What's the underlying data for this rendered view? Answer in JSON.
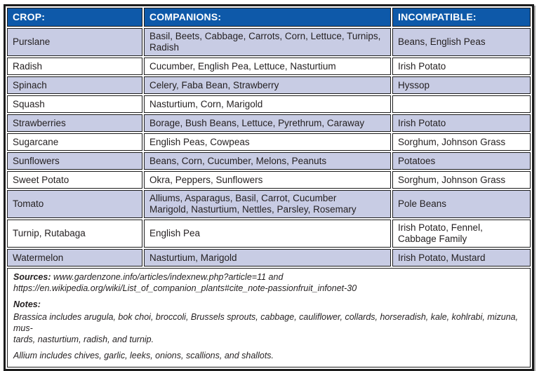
{
  "colors": {
    "header_bg": "#0e59a9",
    "header_text": "#ffffff",
    "row_shaded_bg": "#c8cce4",
    "row_plain_bg": "#ffffff",
    "border": "#1c1c1c",
    "body_text": "#231f20"
  },
  "table": {
    "columns": [
      "CROP:",
      "COMPANIONS:",
      "INCOMPATIBLE:"
    ],
    "rows": [
      {
        "crop": "Purslane",
        "companions": "Basil, Beets, Cabbage, Carrots, Corn, Lettuce, Turnips,\nRadish",
        "incompatible": "Beans, English Peas"
      },
      {
        "crop": "Radish",
        "companions": "Cucumber, English Pea, Lettuce, Nasturtium",
        "incompatible": "Irish Potato"
      },
      {
        "crop": "Spinach",
        "companions": "Celery, Faba Bean, Strawberry",
        "incompatible": "Hyssop"
      },
      {
        "crop": "Squash",
        "companions": "Nasturtium, Corn, Marigold",
        "incompatible": ""
      },
      {
        "crop": "Strawberries",
        "companions": "Borage, Bush Beans, Lettuce, Pyrethrum, Caraway",
        "incompatible": "Irish Potato"
      },
      {
        "crop": "Sugarcane",
        "companions": "English Peas, Cowpeas",
        "incompatible": "Sorghum, Johnson Grass"
      },
      {
        "crop": "Sunflowers",
        "companions": "Beans, Corn, Cucumber, Melons, Peanuts",
        "incompatible": "Potatoes"
      },
      {
        "crop": "Sweet Potato",
        "companions": "Okra, Peppers, Sunflowers",
        "incompatible": "Sorghum, Johnson Grass"
      },
      {
        "crop": "Tomato",
        "companions": "Alliums, Asparagus, Basil, Carrot, Cucumber\nMarigold, Nasturtium, Nettles, Parsley, Rosemary",
        "incompatible": "Pole Beans"
      },
      {
        "crop": "Turnip, Rutabaga",
        "companions": "English Pea",
        "incompatible": "Irish Potato, Fennel,\nCabbage Family"
      },
      {
        "crop": "Watermelon",
        "companions": "Nasturtium, Marigold",
        "incompatible": "Irish Potato, Mustard"
      }
    ]
  },
  "footer": {
    "sources_label": "Sources:",
    "sources_text": "www.gardenzone.info/articles/indexnew.php?article=11 and\nhttps://en.wikipedia.org/wiki/List_of_companion_plants#cite_note-passionfruit_infonet-30",
    "notes_label": "Notes:",
    "note_brassica": "Brassica includes arugula, bok choi, broccoli, Brussels sprouts, cabbage, cauliflower, collards, horseradish, kale, kohlrabi, mizuna, mus-\ntards, nasturtium, radish, and turnip.",
    "note_allium": "Allium includes chives, garlic, leeks, onions, scallions, and shallots."
  }
}
